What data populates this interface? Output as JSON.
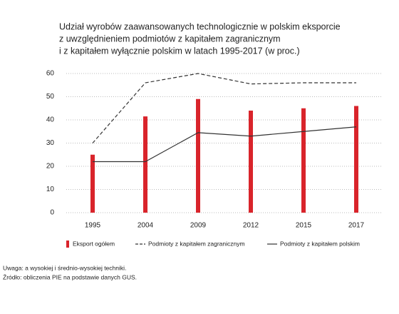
{
  "chart_data": {
    "type": "bar",
    "title": [
      "Udział wyrobów zaawansowanych technologicznie w polskim eksporcie",
      "z uwzględnieniem podmiotów z kapitałem zagranicznym",
      "i z kapitałem wyłącznie polskim w latach 1995-2017 (w proc.)"
    ],
    "categories": [
      "1995",
      "2004",
      "2009",
      "2012",
      "2015",
      "2017"
    ],
    "series": [
      {
        "name": "Eksport ogółem",
        "type": "bar",
        "color": "#d9242b",
        "values": [
          25,
          41.5,
          49,
          44,
          45,
          46
        ]
      },
      {
        "name": "Podmioty z kapitałem zagranicznym",
        "type": "line",
        "dashed": true,
        "color": "#333333",
        "values": [
          30,
          56,
          60,
          55.5,
          56,
          56
        ]
      },
      {
        "name": "Podmioty z kapitałem polskim",
        "type": "line",
        "dashed": false,
        "color": "#333333",
        "values": [
          22,
          22,
          34.5,
          33,
          35,
          37
        ]
      }
    ],
    "ylim": [
      0,
      60
    ],
    "yticks": [
      0,
      10,
      20,
      30,
      40,
      50,
      60
    ],
    "grid": true,
    "notes": [
      "Uwaga: a wysokiej i średnio-wysokiej techniki.",
      "Źródło: obliczenia PIE na podstawie danych GUS."
    ]
  }
}
